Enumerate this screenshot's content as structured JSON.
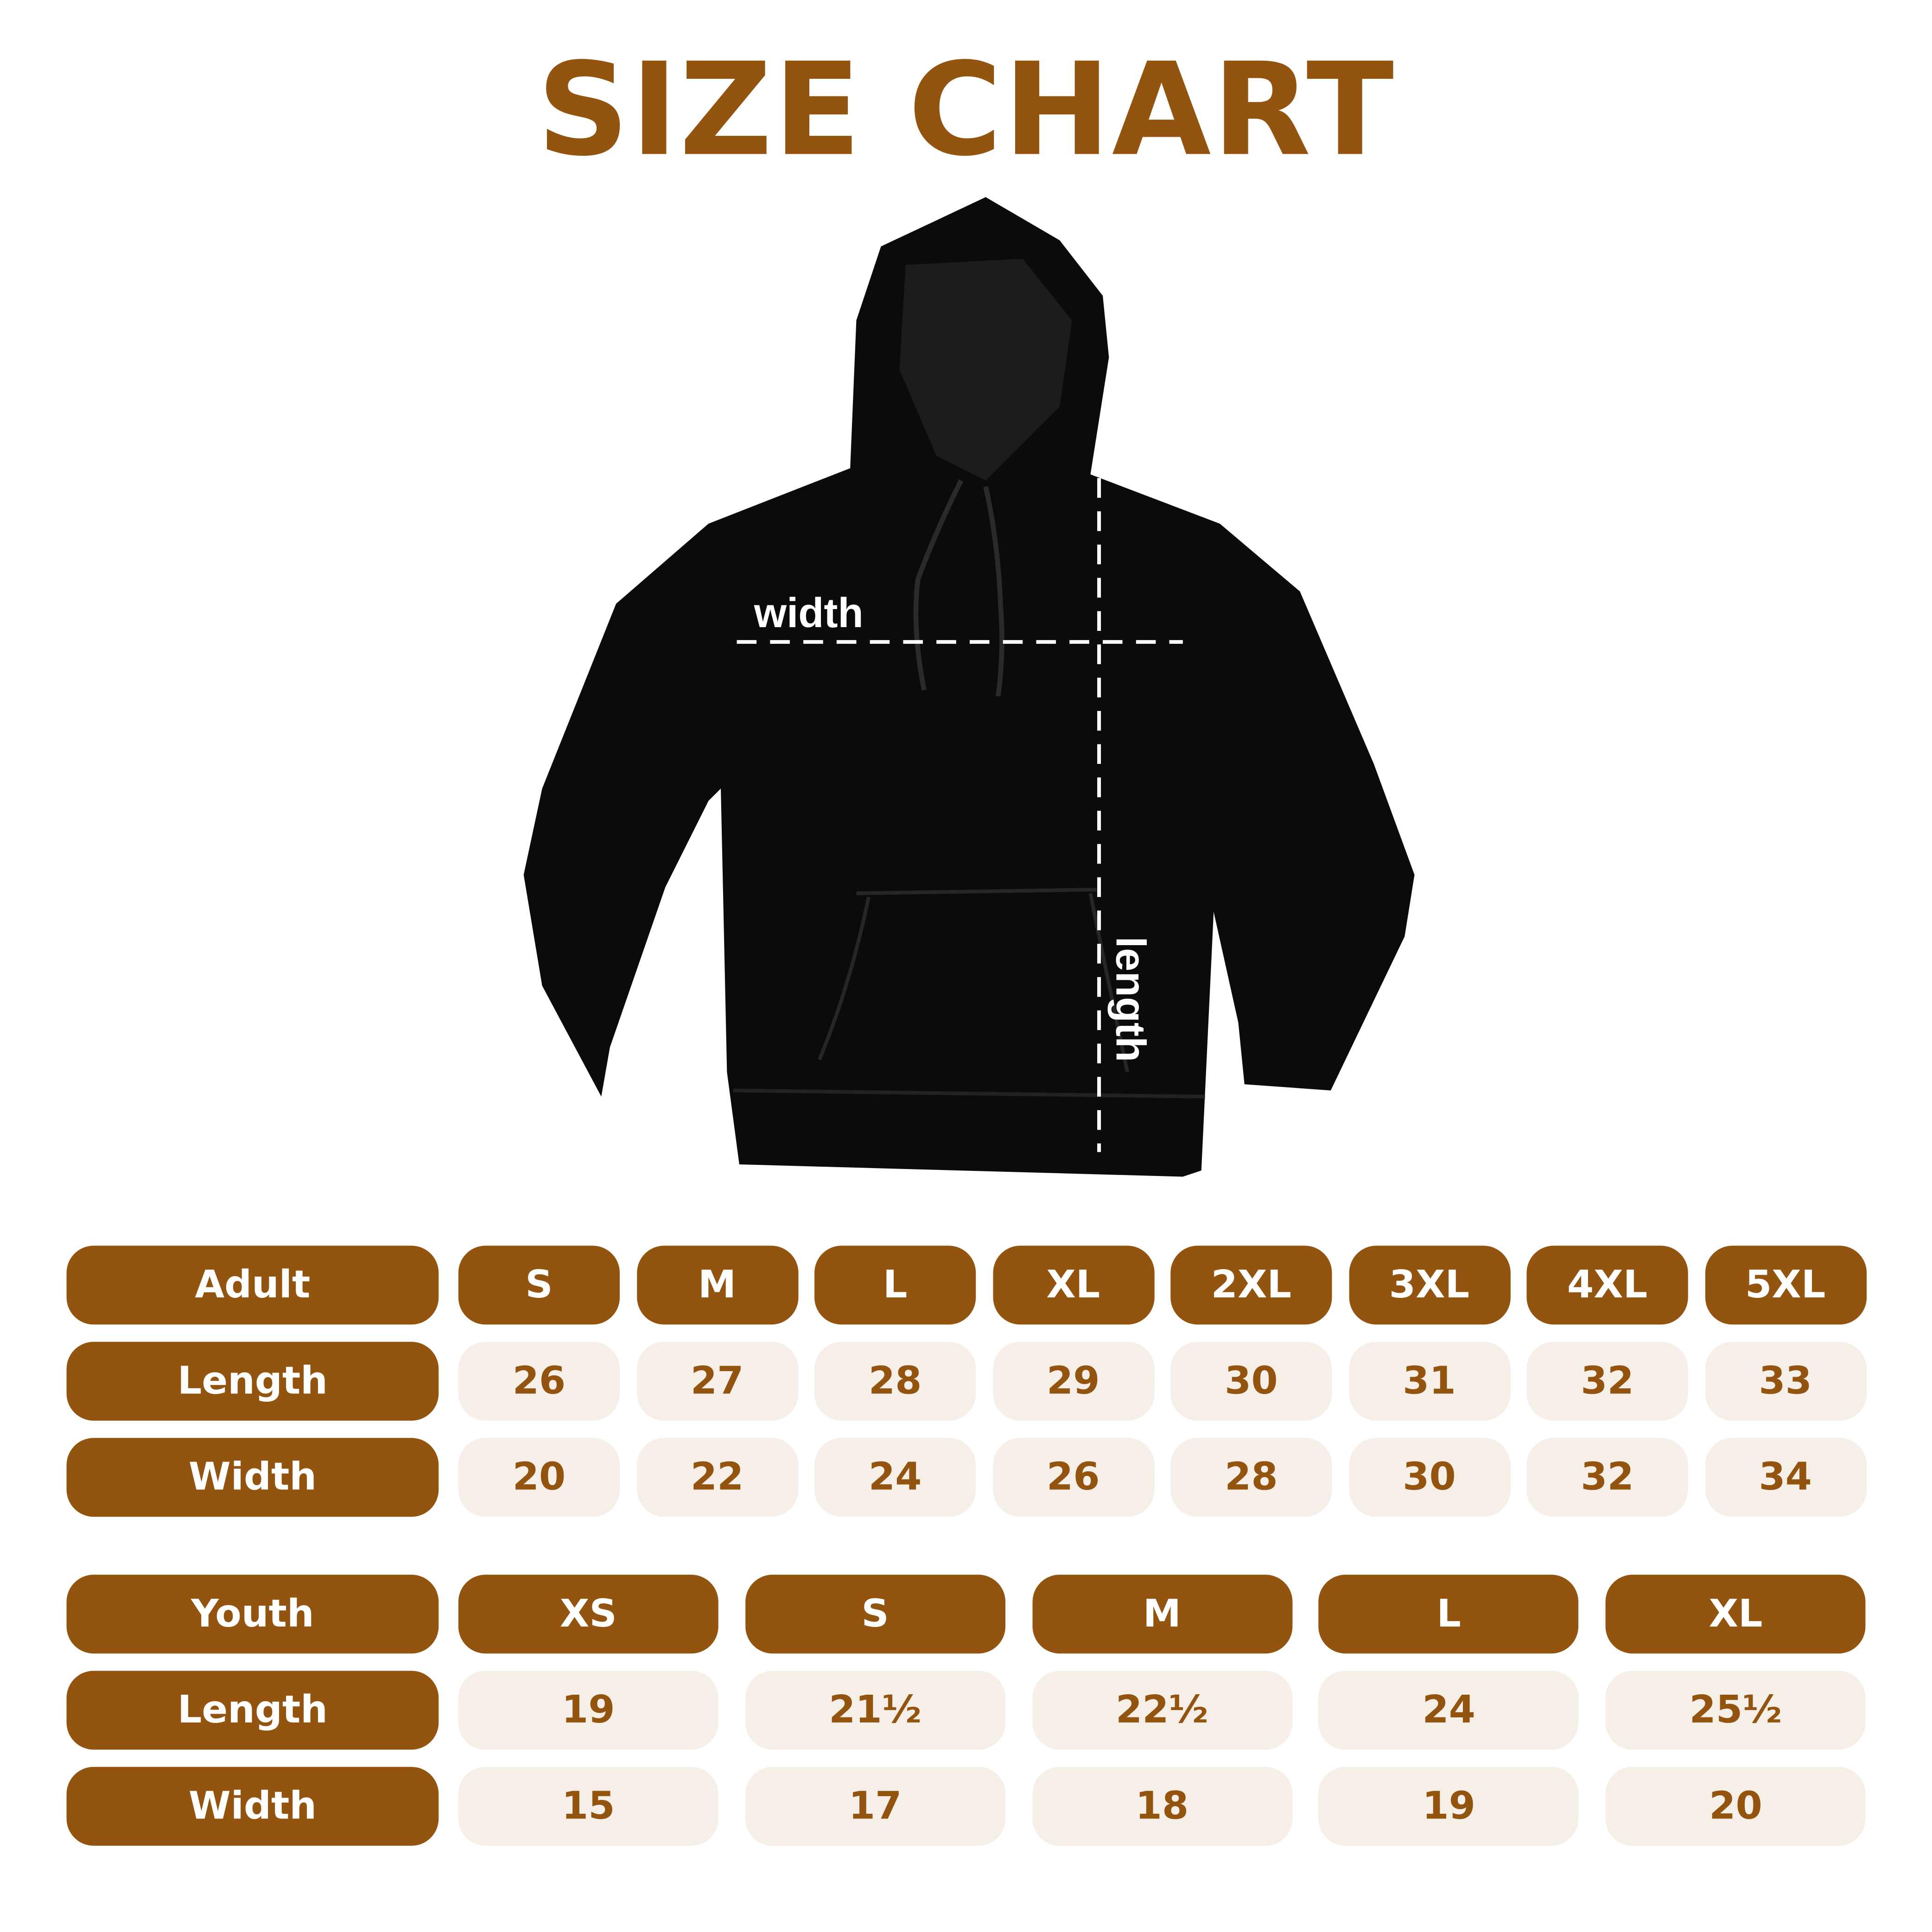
{
  "title": "SIZE CHART",
  "colors": {
    "accent": "#93540f",
    "cell_bg": "#f5efe7",
    "garment": "#0b0b0b"
  },
  "garment": {
    "type": "hoodie",
    "width_label": "width",
    "length_label": "length"
  },
  "adult": {
    "header": "Adult",
    "sizes": [
      "S",
      "M",
      "L",
      "XL",
      "2XL",
      "3XL",
      "4XL",
      "5XL"
    ],
    "rows": [
      {
        "label": "Length",
        "values": [
          "26",
          "27",
          "28",
          "29",
          "30",
          "31",
          "32",
          "33"
        ]
      },
      {
        "label": "Width",
        "values": [
          "20",
          "22",
          "24",
          "26",
          "28",
          "30",
          "32",
          "34"
        ]
      }
    ]
  },
  "youth": {
    "header": "Youth",
    "sizes": [
      "XS",
      "S",
      "M",
      "L",
      "XL"
    ],
    "rows": [
      {
        "label": "Length",
        "values": [
          "19",
          "21½",
          "22½",
          "24",
          "25½"
        ]
      },
      {
        "label": "Width",
        "values": [
          "15",
          "17",
          "18",
          "19",
          "20"
        ]
      }
    ]
  }
}
